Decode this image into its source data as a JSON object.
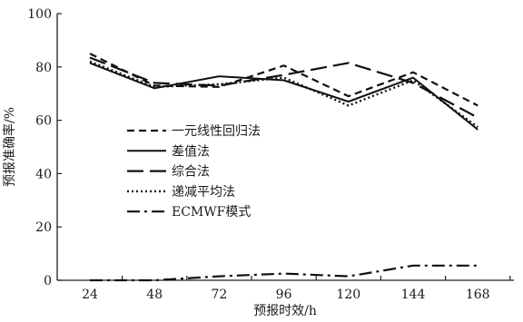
{
  "chart_data": {
    "type": "line",
    "xlabel": "预报时效/h",
    "ylabel": "预报准确率/%",
    "x": [
      24,
      48,
      72,
      96,
      120,
      144,
      168
    ],
    "ylim": [
      0,
      100
    ],
    "yticks": [
      0,
      20,
      40,
      60,
      80,
      100
    ],
    "grid": false,
    "legend_position": "center-left",
    "series": [
      {
        "name": "一元线性回归法",
        "style": "short-dash",
        "values": [
          85,
          73,
          72.5,
          80.5,
          69,
          78,
          65.5
        ]
      },
      {
        "name": "差值法",
        "style": "solid",
        "values": [
          81.5,
          72,
          76.5,
          75,
          67,
          76,
          56.5
        ]
      },
      {
        "name": "综合法",
        "style": "long-dash",
        "values": [
          83.5,
          74,
          73,
          77,
          81.5,
          74,
          61
        ]
      },
      {
        "name": "递减平均法",
        "style": "dotted",
        "values": [
          82,
          72.5,
          73.5,
          76,
          65.5,
          75,
          57.5
        ]
      },
      {
        "name": "ECMWF模式",
        "style": "dash-dot",
        "values": [
          0,
          0,
          1.5,
          2.5,
          1.5,
          5.5,
          5.5
        ]
      }
    ]
  }
}
